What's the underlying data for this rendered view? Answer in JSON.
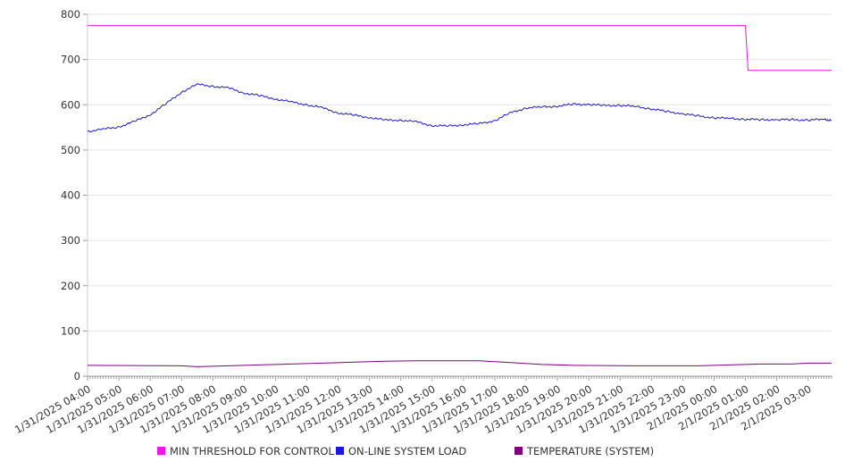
{
  "chart_data": {
    "type": "line",
    "title": "",
    "xlabel": "",
    "ylabel": "",
    "ylim": [
      0,
      800
    ],
    "y_ticks": [
      0,
      100,
      200,
      300,
      400,
      500,
      600,
      700,
      800
    ],
    "x_start": "1/31/2025 04:00",
    "x_end": "2/1/2025 03:45",
    "x_tick_labels": [
      "1/31/2025 04:00",
      "1/31/2025 05:00",
      "1/31/2025 06:00",
      "1/31/2025 07:00",
      "1/31/2025 08:00",
      "1/31/2025 09:00",
      "1/31/2025 10:00",
      "1/31/2025 11:00",
      "1/31/2025 12:00",
      "1/31/2025 13:00",
      "1/31/2025 14:00",
      "1/31/2025 15:00",
      "1/31/2025 16:00",
      "1/31/2025 17:00",
      "1/31/2025 18:00",
      "1/31/2025 19:00",
      "1/31/2025 20:00",
      "1/31/2025 21:00",
      "1/31/2025 22:00",
      "1/31/2025 23:00",
      "2/1/2025 00:00",
      "2/1/2025 01:00",
      "2/1/2025 02:00",
      "2/1/2025 03:00"
    ],
    "grid": true,
    "legend_position": "bottom",
    "series": [
      {
        "name": "MIN THRESHOLD FOR CONTROL",
        "color": "#e619e6",
        "points": [
          [
            "1/31/2025 04:00",
            775
          ],
          [
            "2/1/2025 01:00",
            775
          ],
          [
            "2/1/2025 01:05",
            676
          ],
          [
            "2/1/2025 03:45",
            676
          ]
        ]
      },
      {
        "name": "ON-LINE SYSTEM LOAD",
        "color": "#1a1ad6",
        "points": [
          [
            "1/31/2025 04:00",
            541
          ],
          [
            "1/31/2025 04:30",
            546
          ],
          [
            "1/31/2025 05:00",
            551
          ],
          [
            "1/31/2025 05:30",
            563
          ],
          [
            "1/31/2025 06:00",
            578
          ],
          [
            "1/31/2025 06:30",
            602
          ],
          [
            "1/31/2025 07:00",
            628
          ],
          [
            "1/31/2025 07:30",
            645
          ],
          [
            "1/31/2025 08:00",
            641
          ],
          [
            "1/31/2025 08:30",
            637
          ],
          [
            "1/31/2025 09:00",
            626
          ],
          [
            "1/31/2025 09:30",
            620
          ],
          [
            "1/31/2025 10:00",
            613
          ],
          [
            "1/31/2025 10:30",
            606
          ],
          [
            "1/31/2025 11:00",
            600
          ],
          [
            "1/31/2025 11:30",
            593
          ],
          [
            "1/31/2025 12:00",
            582
          ],
          [
            "1/31/2025 12:30",
            577
          ],
          [
            "1/31/2025 13:00",
            572
          ],
          [
            "1/31/2025 13:30",
            566
          ],
          [
            "1/31/2025 14:00",
            566
          ],
          [
            "1/31/2025 14:30",
            562
          ],
          [
            "1/31/2025 15:00",
            554
          ],
          [
            "1/31/2025 15:30",
            553
          ],
          [
            "1/31/2025 16:00",
            556
          ],
          [
            "1/31/2025 16:30",
            558
          ],
          [
            "1/31/2025 17:00",
            565
          ],
          [
            "1/31/2025 17:30",
            582
          ],
          [
            "1/31/2025 18:00",
            593
          ],
          [
            "1/31/2025 18:30",
            595
          ],
          [
            "1/31/2025 19:00",
            597
          ],
          [
            "1/31/2025 19:30",
            601
          ],
          [
            "1/31/2025 20:00",
            601
          ],
          [
            "1/31/2025 20:30",
            598
          ],
          [
            "1/31/2025 21:00",
            599
          ],
          [
            "1/31/2025 21:30",
            596
          ],
          [
            "1/31/2025 22:00",
            591
          ],
          [
            "1/31/2025 22:30",
            585
          ],
          [
            "1/31/2025 23:00",
            580
          ],
          [
            "1/31/2025 23:30",
            575
          ],
          [
            "2/1/2025 00:00",
            571
          ],
          [
            "2/1/2025 00:30",
            570
          ],
          [
            "2/1/2025 01:00",
            568
          ],
          [
            "2/1/2025 01:30",
            567
          ],
          [
            "2/1/2025 02:00",
            567
          ],
          [
            "2/1/2025 02:30",
            567
          ],
          [
            "2/1/2025 03:00",
            566
          ],
          [
            "2/1/2025 03:30",
            568
          ],
          [
            "2/1/2025 03:45",
            565
          ]
        ]
      },
      {
        "name": "TEMPERATURE (SYSTEM)",
        "color": "#800080",
        "points": [
          [
            "1/31/2025 04:00",
            24
          ],
          [
            "1/31/2025 07:00",
            23
          ],
          [
            "1/31/2025 07:30",
            21
          ],
          [
            "1/31/2025 08:30",
            23
          ],
          [
            "1/31/2025 09:30",
            25
          ],
          [
            "1/31/2025 10:30",
            27
          ],
          [
            "1/31/2025 11:30",
            29
          ],
          [
            "1/31/2025 12:30",
            31
          ],
          [
            "1/31/2025 13:30",
            33
          ],
          [
            "1/31/2025 14:30",
            34
          ],
          [
            "1/31/2025 16:30",
            34
          ],
          [
            "1/31/2025 17:30",
            30
          ],
          [
            "1/31/2025 18:30",
            26
          ],
          [
            "1/31/2025 19:30",
            24
          ],
          [
            "1/31/2025 21:30",
            23
          ],
          [
            "1/31/2025 23:30",
            23
          ],
          [
            "2/1/2025 00:30",
            25
          ],
          [
            "2/1/2025 01:30",
            27
          ],
          [
            "2/1/2025 02:30",
            27
          ],
          [
            "2/1/2025 03:00",
            29
          ],
          [
            "2/1/2025 03:45",
            29
          ]
        ]
      }
    ]
  }
}
